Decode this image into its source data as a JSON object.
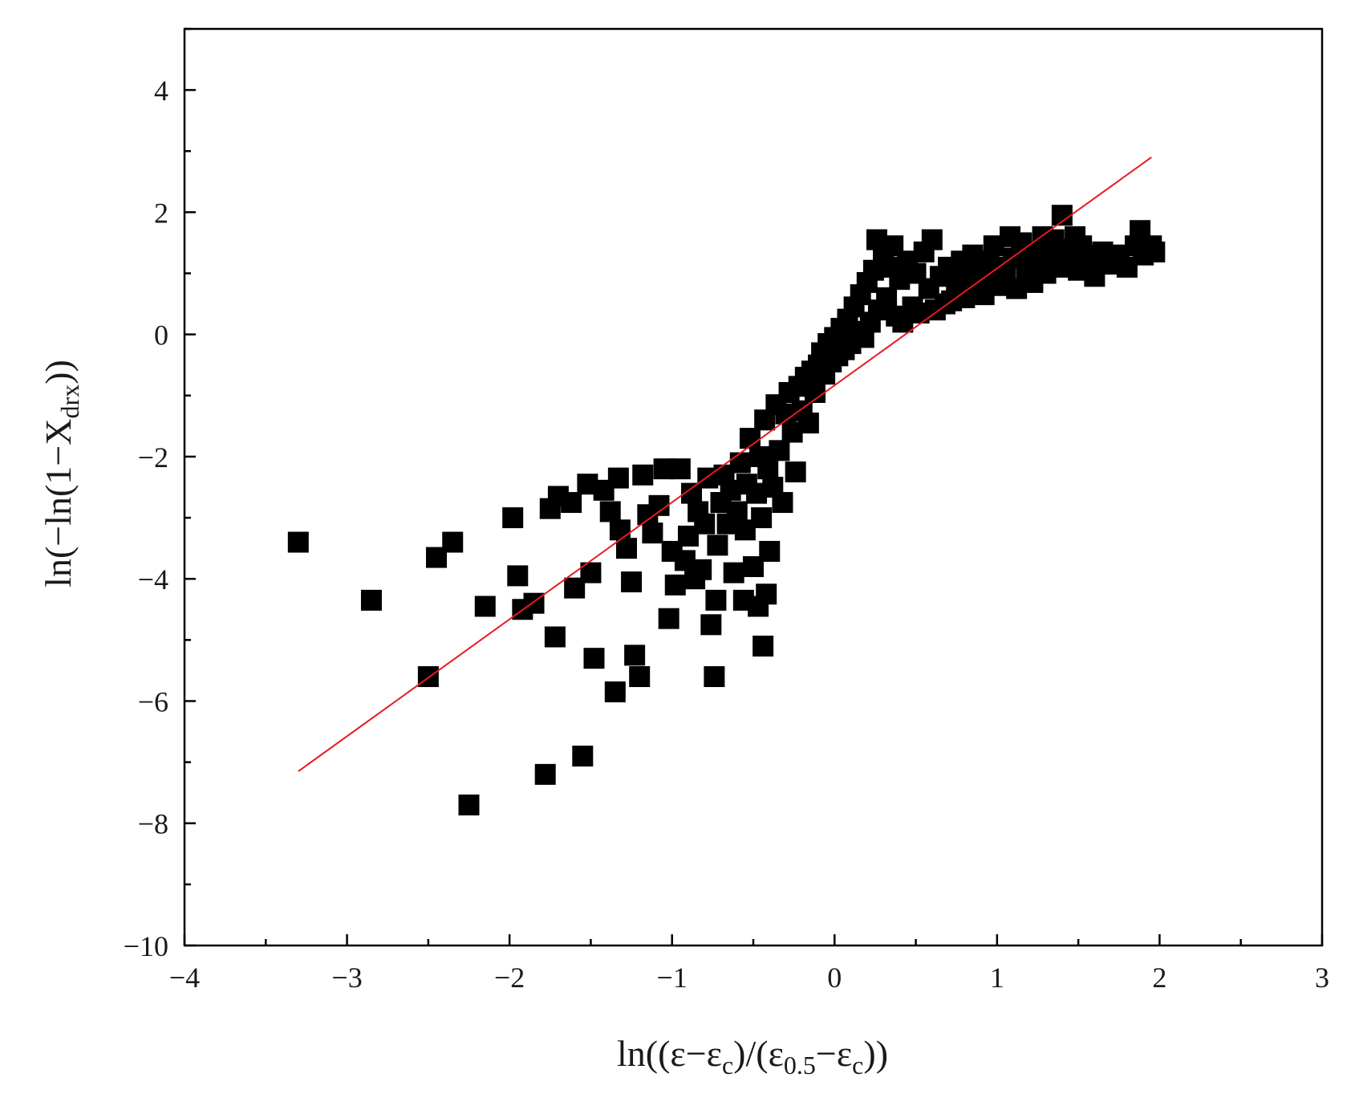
{
  "chart_data": {
    "type": "scatter",
    "title": "",
    "xlabel": "ln((ε−ε<sub>c</sub>)/(ε<sub>0.5</sub>−ε<sub>c</sub>))",
    "ylabel": "ln(−ln(1−X<sub>drx</sub>))",
    "xlabel_parts": {
      "a": "ln((ε−ε",
      "sub1": "c",
      "b": ")/(ε",
      "sub2": "0.5",
      "c": "−ε",
      "sub3": "c",
      "d": "))"
    },
    "ylabel_parts": {
      "a": "ln(−ln(1−X",
      "sub1": "drx",
      "b": "))"
    },
    "xlim": [
      -4,
      3
    ],
    "ylim": [
      -10,
      5
    ],
    "x_ticks": [
      "−4",
      "−3",
      "−2",
      "−1",
      "0",
      "1",
      "2",
      "3"
    ],
    "y_ticks": [
      "−10",
      "−8",
      "−6",
      "−4",
      "−2",
      "0",
      "2",
      "4"
    ],
    "grid": false,
    "marker": "square",
    "marker_color": "#000000",
    "fit_line": {
      "color": "#e8191c",
      "x": [
        -3.3,
        1.95
      ],
      "y": [
        -7.15,
        2.9
      ]
    },
    "points": [
      [
        -3.3,
        -3.4
      ],
      [
        -2.85,
        -4.35
      ],
      [
        -2.5,
        -5.6
      ],
      [
        -2.45,
        -3.65
      ],
      [
        -2.35,
        -3.4
      ],
      [
        -2.25,
        -7.7
      ],
      [
        -2.15,
        -4.45
      ],
      [
        -1.98,
        -3.0
      ],
      [
        -1.95,
        -3.95
      ],
      [
        -1.92,
        -4.5
      ],
      [
        -1.85,
        -4.4
      ],
      [
        -1.78,
        -7.2
      ],
      [
        -1.75,
        -2.85
      ],
      [
        -1.72,
        -4.95
      ],
      [
        -1.7,
        -2.65
      ],
      [
        -1.62,
        -2.75
      ],
      [
        -1.6,
        -4.15
      ],
      [
        -1.55,
        -6.9
      ],
      [
        -1.52,
        -2.45
      ],
      [
        -1.5,
        -3.9
      ],
      [
        -1.48,
        -5.3
      ],
      [
        -1.42,
        -2.55
      ],
      [
        -1.38,
        -2.9
      ],
      [
        -1.35,
        -5.85
      ],
      [
        -1.33,
        -2.35
      ],
      [
        -1.32,
        -3.2
      ],
      [
        -1.28,
        -3.5
      ],
      [
        -1.25,
        -4.05
      ],
      [
        -1.23,
        -5.25
      ],
      [
        -1.2,
        -5.6
      ],
      [
        -1.18,
        -2.3
      ],
      [
        -1.15,
        -2.95
      ],
      [
        -1.12,
        -3.25
      ],
      [
        -1.08,
        -2.8
      ],
      [
        -1.05,
        -2.2
      ],
      [
        -1.02,
        -4.65
      ],
      [
        -1.0,
        -3.55
      ],
      [
        -0.98,
        -4.1
      ],
      [
        -0.95,
        -2.2
      ],
      [
        -0.92,
        -3.7
      ],
      [
        -0.9,
        -3.3
      ],
      [
        -0.88,
        -2.6
      ],
      [
        -0.86,
        -4.0
      ],
      [
        -0.84,
        -2.9
      ],
      [
        -0.82,
        -3.85
      ],
      [
        -0.8,
        -3.1
      ],
      [
        -0.78,
        -2.35
      ],
      [
        -0.76,
        -4.75
      ],
      [
        -0.74,
        -5.6
      ],
      [
        -0.73,
        -4.35
      ],
      [
        -0.72,
        -3.45
      ],
      [
        -0.7,
        -2.75
      ],
      [
        -0.68,
        -2.3
      ],
      [
        -0.66,
        -3.1
      ],
      [
        -0.64,
        -2.55
      ],
      [
        -0.62,
        -3.9
      ],
      [
        -0.6,
        -2.9
      ],
      [
        -0.58,
        -2.1
      ],
      [
        -0.56,
        -4.35
      ],
      [
        -0.55,
        -3.2
      ],
      [
        -0.54,
        -2.45
      ],
      [
        -0.52,
        -1.7
      ],
      [
        -0.5,
        -3.8
      ],
      [
        -0.48,
        -2.6
      ],
      [
        -0.47,
        -4.45
      ],
      [
        -0.46,
        -2.0
      ],
      [
        -0.45,
        -3.0
      ],
      [
        -0.44,
        -5.1
      ],
      [
        -0.43,
        -1.4
      ],
      [
        -0.42,
        -4.25
      ],
      [
        -0.41,
        -2.2
      ],
      [
        -0.4,
        -3.55
      ],
      [
        -0.38,
        -2.5
      ],
      [
        -0.36,
        -1.15
      ],
      [
        -0.34,
        -1.9
      ],
      [
        -0.32,
        -2.75
      ],
      [
        -0.3,
        -1.3
      ],
      [
        -0.28,
        -0.95
      ],
      [
        -0.26,
        -1.6
      ],
      [
        -0.24,
        -2.25
      ],
      [
        -0.22,
        -0.85
      ],
      [
        -0.2,
        -1.25
      ],
      [
        -0.18,
        -0.7
      ],
      [
        -0.16,
        -1.45
      ],
      [
        -0.14,
        -0.6
      ],
      [
        -0.12,
        -0.95
      ],
      [
        -0.1,
        -0.5
      ],
      [
        -0.08,
        -0.3
      ],
      [
        -0.06,
        -0.65
      ],
      [
        -0.04,
        -0.15
      ],
      [
        -0.02,
        -0.45
      ],
      [
        0.0,
        -0.05
      ],
      [
        0.02,
        -0.35
      ],
      [
        0.04,
        0.1
      ],
      [
        0.06,
        -0.25
      ],
      [
        0.08,
        0.25
      ],
      [
        0.1,
        -0.15
      ],
      [
        0.12,
        0.45
      ],
      [
        0.14,
        0.05
      ],
      [
        0.16,
        0.65
      ],
      [
        0.18,
        -0.05
      ],
      [
        0.2,
        0.85
      ],
      [
        0.22,
        0.2
      ],
      [
        0.24,
        1.05
      ],
      [
        0.26,
        1.55
      ],
      [
        0.27,
        0.4
      ],
      [
        0.3,
        1.3
      ],
      [
        0.32,
        0.6
      ],
      [
        0.34,
        1.1
      ],
      [
        0.36,
        1.45
      ],
      [
        0.38,
        0.3
      ],
      [
        0.4,
        0.9
      ],
      [
        0.42,
        0.2
      ],
      [
        0.45,
        1.2
      ],
      [
        0.48,
        0.45
      ],
      [
        0.5,
        1.0
      ],
      [
        0.52,
        0.35
      ],
      [
        0.55,
        1.35
      ],
      [
        0.58,
        0.75
      ],
      [
        0.6,
        1.55
      ],
      [
        0.62,
        0.4
      ],
      [
        0.65,
        0.95
      ],
      [
        0.68,
        0.5
      ],
      [
        0.7,
        1.1
      ],
      [
        0.72,
        0.55
      ],
      [
        0.75,
        0.85
      ],
      [
        0.78,
        1.2
      ],
      [
        0.8,
        0.6
      ],
      [
        0.82,
        0.95
      ],
      [
        0.85,
        1.3
      ],
      [
        0.88,
        0.7
      ],
      [
        0.9,
        1.0
      ],
      [
        0.92,
        0.65
      ],
      [
        0.95,
        1.2
      ],
      [
        0.98,
        1.45
      ],
      [
        1.0,
        0.8
      ],
      [
        1.02,
        1.1
      ],
      [
        1.05,
        0.95
      ],
      [
        1.08,
        1.6
      ],
      [
        1.1,
        1.25
      ],
      [
        1.12,
        0.75
      ],
      [
        1.15,
        1.5
      ],
      [
        1.18,
        1.05
      ],
      [
        1.2,
        1.35
      ],
      [
        1.22,
        0.85
      ],
      [
        1.25,
        1.2
      ],
      [
        1.28,
        1.6
      ],
      [
        1.3,
        1.0
      ],
      [
        1.32,
        1.3
      ],
      [
        1.35,
        1.55
      ],
      [
        1.38,
        1.1
      ],
      [
        1.4,
        1.95
      ],
      [
        1.42,
        1.4
      ],
      [
        1.45,
        1.25
      ],
      [
        1.48,
        1.6
      ],
      [
        1.5,
        1.05
      ],
      [
        1.52,
        1.45
      ],
      [
        1.55,
        1.3
      ],
      [
        1.58,
        1.1
      ],
      [
        1.6,
        0.95
      ],
      [
        1.62,
        1.2
      ],
      [
        1.65,
        1.35
      ],
      [
        1.7,
        1.15
      ],
      [
        1.75,
        1.3
      ],
      [
        1.8,
        1.1
      ],
      [
        1.85,
        1.45
      ],
      [
        1.88,
        1.7
      ],
      [
        1.9,
        1.3
      ],
      [
        1.95,
        1.45
      ],
      [
        1.97,
        1.35
      ]
    ]
  }
}
